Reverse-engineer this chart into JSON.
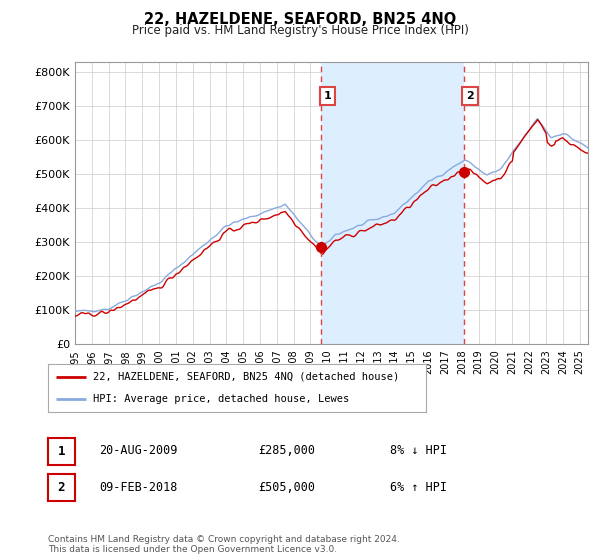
{
  "title": "22, HAZELDENE, SEAFORD, BN25 4NQ",
  "subtitle": "Price paid vs. HM Land Registry's House Price Index (HPI)",
  "ylabel_ticks": [
    "£0",
    "£100K",
    "£200K",
    "£300K",
    "£400K",
    "£500K",
    "£600K",
    "£700K",
    "£800K"
  ],
  "ytick_values": [
    0,
    100000,
    200000,
    300000,
    400000,
    500000,
    600000,
    700000,
    800000
  ],
  "ylim": [
    0,
    830000
  ],
  "xlim_start": 1995.0,
  "xlim_end": 2025.5,
  "hpi_color": "#88aadd",
  "price_color": "#cc0000",
  "vline_color": "#dd4444",
  "shade_color": "#ddeeff",
  "transaction1_date": 2009.64,
  "transaction1_price": 285000,
  "transaction2_date": 2018.1,
  "transaction2_price": 505000,
  "legend_label1": "22, HAZELDENE, SEAFORD, BN25 4NQ (detached house)",
  "legend_label2": "HPI: Average price, detached house, Lewes",
  "table_row1_date": "20-AUG-2009",
  "table_row1_price": "£285,000",
  "table_row1_hpi": "8% ↓ HPI",
  "table_row2_date": "09-FEB-2018",
  "table_row2_price": "£505,000",
  "table_row2_hpi": "6% ↑ HPI",
  "footer": "Contains HM Land Registry data © Crown copyright and database right 2024.\nThis data is licensed under the Open Government Licence v3.0."
}
